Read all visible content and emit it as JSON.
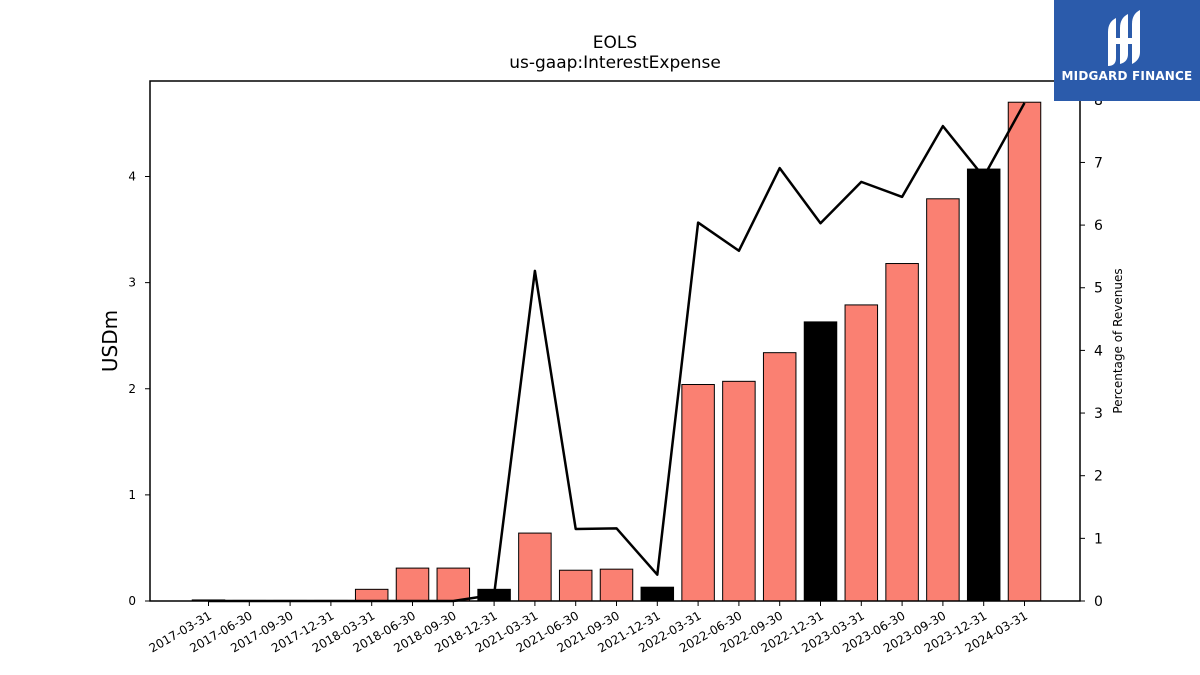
{
  "chart_data": {
    "type": "bar",
    "title": "EOLS",
    "subtitle": "us-gaap:InterestExpense",
    "ylabel": "USDm",
    "y2label": "Percentage of Revenues",
    "categories": [
      "2017-03-31",
      "2017-06-30",
      "2017-09-30",
      "2017-12-31",
      "2018-03-31",
      "2018-06-30",
      "2018-09-30",
      "2018-12-31",
      "2021-03-31",
      "2021-06-30",
      "2021-09-30",
      "2021-12-31",
      "2022-03-31",
      "2022-06-30",
      "2022-09-30",
      "2022-12-31",
      "2023-03-31",
      "2023-06-30",
      "2023-09-30",
      "2023-12-31",
      "2024-03-31"
    ],
    "values": [
      0.01,
      0.005,
      0.005,
      0.005,
      0.11,
      0.31,
      0.31,
      0.11,
      0.64,
      0.29,
      0.3,
      0.13,
      2.04,
      2.07,
      2.34,
      2.63,
      2.79,
      3.18,
      3.79,
      4.07,
      4.7
    ],
    "bar_colors": [
      "#fa8072",
      "#fa8072",
      "#fa8072",
      "#fa8072",
      "#fa8072",
      "#fa8072",
      "#fa8072",
      "#000000",
      "#fa8072",
      "#fa8072",
      "#fa8072",
      "#000000",
      "#fa8072",
      "#fa8072",
      "#fa8072",
      "#000000",
      "#fa8072",
      "#fa8072",
      "#fa8072",
      "#000000",
      "#fa8072"
    ],
    "line_values": [
      0,
      0,
      0,
      0,
      0,
      0,
      0,
      0.1,
      5.27,
      1.15,
      1.16,
      0.42,
      6.04,
      5.59,
      6.91,
      6.03,
      6.69,
      6.45,
      7.58,
      6.77,
      7.95
    ],
    "line_color": "#000000",
    "ylim": [
      0,
      4.9
    ],
    "y2lim": [
      0,
      8.3
    ],
    "yticks": [
      "0",
      "1",
      "2",
      "3",
      "4"
    ],
    "y2ticks": [
      "0",
      "1",
      "2",
      "3",
      "4",
      "5",
      "6",
      "7",
      "8"
    ],
    "grid": false
  },
  "logo": {
    "text": "MIDGARD FINANCE",
    "color": "#2b5bab"
  }
}
